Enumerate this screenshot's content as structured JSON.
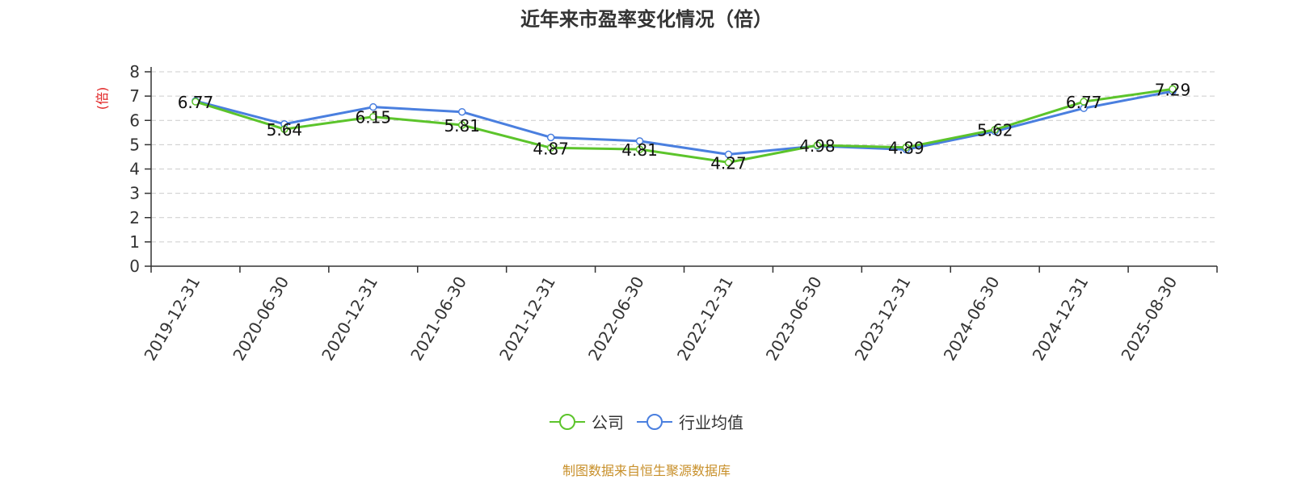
{
  "chart_data": {
    "type": "line",
    "title": "近年来市盈率变化情况（倍）",
    "ylabel": "(倍)",
    "xlabel": "",
    "ylim": [
      0,
      8
    ],
    "yticks": [
      "0",
      "1",
      "2",
      "3",
      "4",
      "5",
      "6",
      "7",
      "8"
    ],
    "grid": true,
    "legend_position": "bottom",
    "categories": [
      "2019-12-31",
      "2020-06-30",
      "2020-12-31",
      "2021-06-30",
      "2021-12-31",
      "2022-06-30",
      "2022-12-31",
      "2023-06-30",
      "2023-12-31",
      "2024-06-30",
      "2024-12-31",
      "2025-08-30"
    ],
    "series": [
      {
        "name": "公司",
        "color": "#5cc42b",
        "values": [
          6.77,
          5.64,
          6.15,
          5.81,
          4.87,
          4.81,
          4.27,
          4.98,
          4.89,
          5.62,
          6.77,
          7.29
        ],
        "labels": [
          "6.77",
          "5.64",
          "6.15",
          "5.81",
          "4.87",
          "4.81",
          "4.27",
          "4.98",
          "4.89",
          "5.62",
          "6.77",
          "7.29"
        ]
      },
      {
        "name": "行业均值",
        "color": "#4a7fdf",
        "values": [
          6.8,
          5.85,
          6.55,
          6.35,
          5.3,
          5.15,
          4.6,
          4.95,
          4.8,
          5.55,
          6.5,
          7.2
        ]
      }
    ],
    "source": "制图数据来自恒生聚源数据库"
  }
}
